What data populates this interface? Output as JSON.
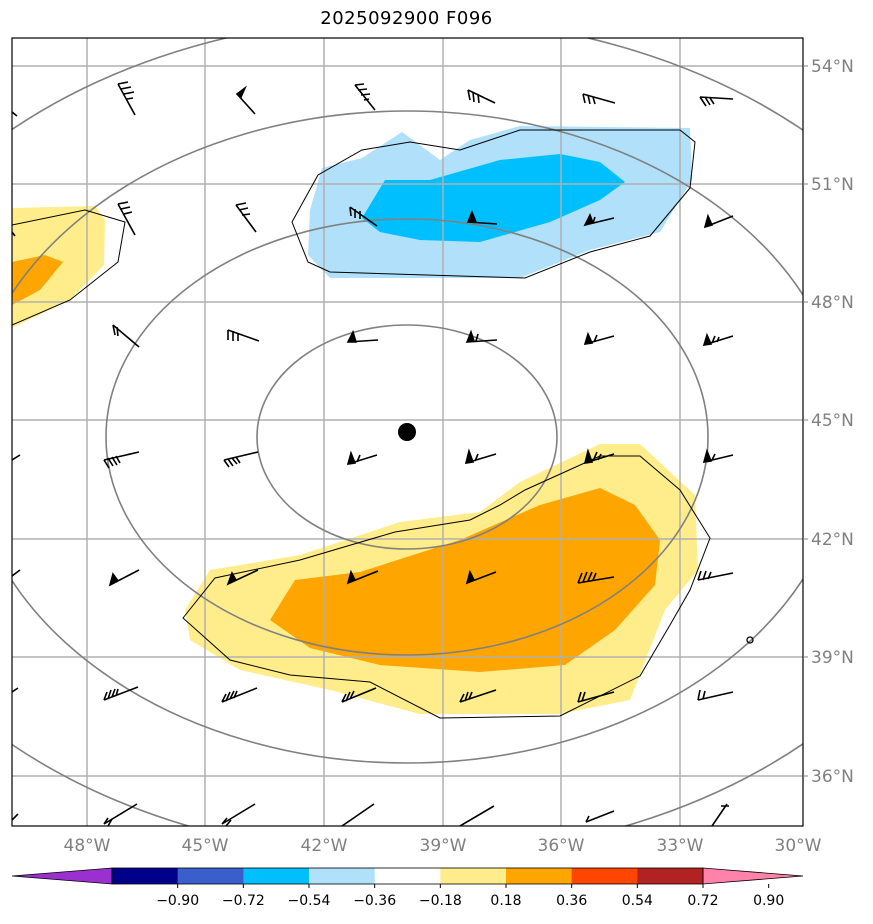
{
  "title": "2025092900 F096",
  "map": {
    "lat_labels": [
      "54°N",
      "51°N",
      "48°N",
      "45°N",
      "42°N",
      "39°N",
      "36°N"
    ],
    "lon_labels": [
      "48°W",
      "45°W",
      "42°W",
      "39°W",
      "36°W",
      "33°W",
      "30°W"
    ],
    "center_marker": "filled-circle"
  },
  "colorbar": {
    "ticks": [
      "−0.90",
      "−0.72",
      "−0.54",
      "−0.36",
      "−0.18",
      "0.18",
      "0.36",
      "0.54",
      "0.72",
      "0.90"
    ],
    "colors": [
      "#9b30d0",
      "#00008b",
      "#3a5fcd",
      "#00bfff",
      "#b0e0fa",
      "#ffffff",
      "#ffec8b",
      "#ffa500",
      "#ff4500",
      "#b22222",
      "#ff82ab"
    ]
  },
  "fill_colors": {
    "pos_low": "#ffec8b",
    "pos_mid": "#ffa500",
    "neg_low": "#b0e0fa",
    "neg_mid": "#00bfff"
  }
}
